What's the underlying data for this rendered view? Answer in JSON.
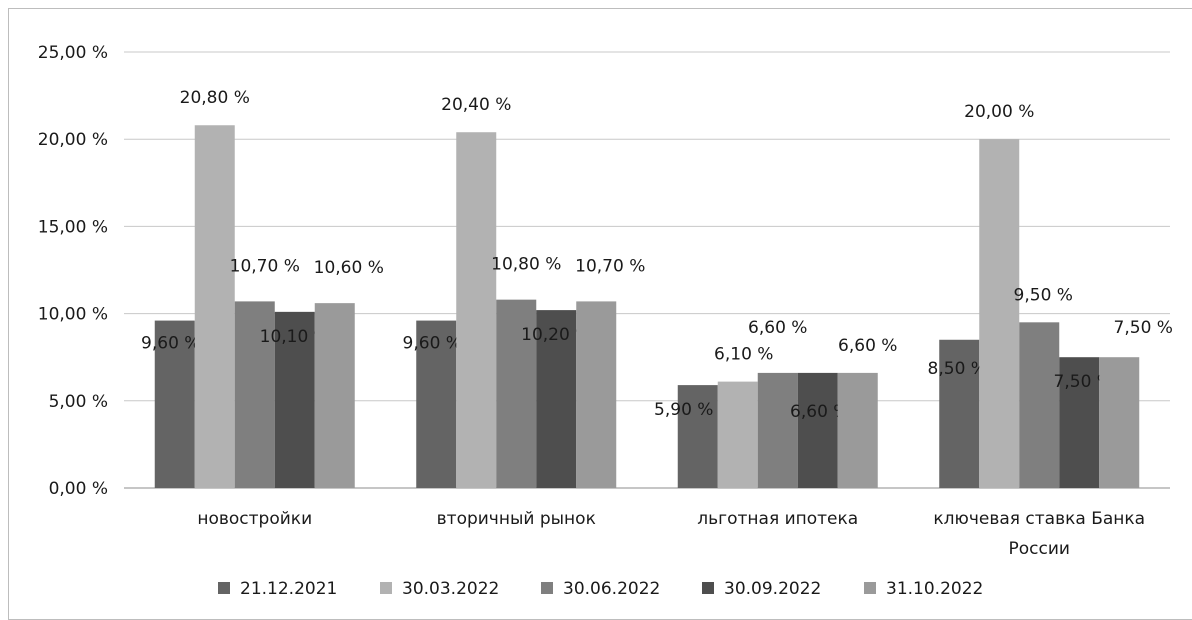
{
  "chart_data": {
    "type": "bar",
    "categories": [
      "новостройки",
      "вторичный рынок",
      "льготная ипотека",
      "ключевая ставка Банка России"
    ],
    "series": [
      {
        "name": "21.12.2021",
        "color": "#646464",
        "values": [
          9.6,
          9.6,
          5.9,
          8.5
        ],
        "labels": [
          "9,60 %",
          "9,60 %",
          "5,90 %",
          "8,50 %"
        ]
      },
      {
        "name": "30.03.2022",
        "color": "#b2b2b2",
        "values": [
          20.8,
          20.4,
          6.1,
          20.0
        ],
        "labels": [
          "20,80 %",
          "20,40 %",
          "6,10 %",
          "20,00 %"
        ]
      },
      {
        "name": "30.06.2022",
        "color": "#7f7f7f",
        "values": [
          10.7,
          10.8,
          6.6,
          9.5
        ],
        "labels": [
          "10,70 %",
          "10,80 %",
          "6,60 %",
          "9,50 %"
        ]
      },
      {
        "name": "30.09.2022",
        "color": "#4e4e4e",
        "values": [
          10.1,
          10.2,
          6.6,
          7.5
        ],
        "labels": [
          "10,10 %",
          "10,20 %",
          "6,60 %",
          "7,50 %"
        ]
      },
      {
        "name": "31.10.2022",
        "color": "#9a9a9a",
        "values": [
          10.6,
          10.7,
          6.6,
          7.5
        ],
        "labels": [
          "10,60 %",
          "10,70 %",
          "6,60 %",
          "7,50 %"
        ]
      }
    ],
    "ylim": [
      0,
      25
    ],
    "yticks": [
      0,
      5,
      10,
      15,
      20,
      25
    ],
    "ytick_labels": [
      "0,00 %",
      "5,00 %",
      "10,00 %",
      "15,00 %",
      "20,00 %",
      "25,00 %"
    ],
    "grid": true,
    "legend_position": "bottom"
  }
}
